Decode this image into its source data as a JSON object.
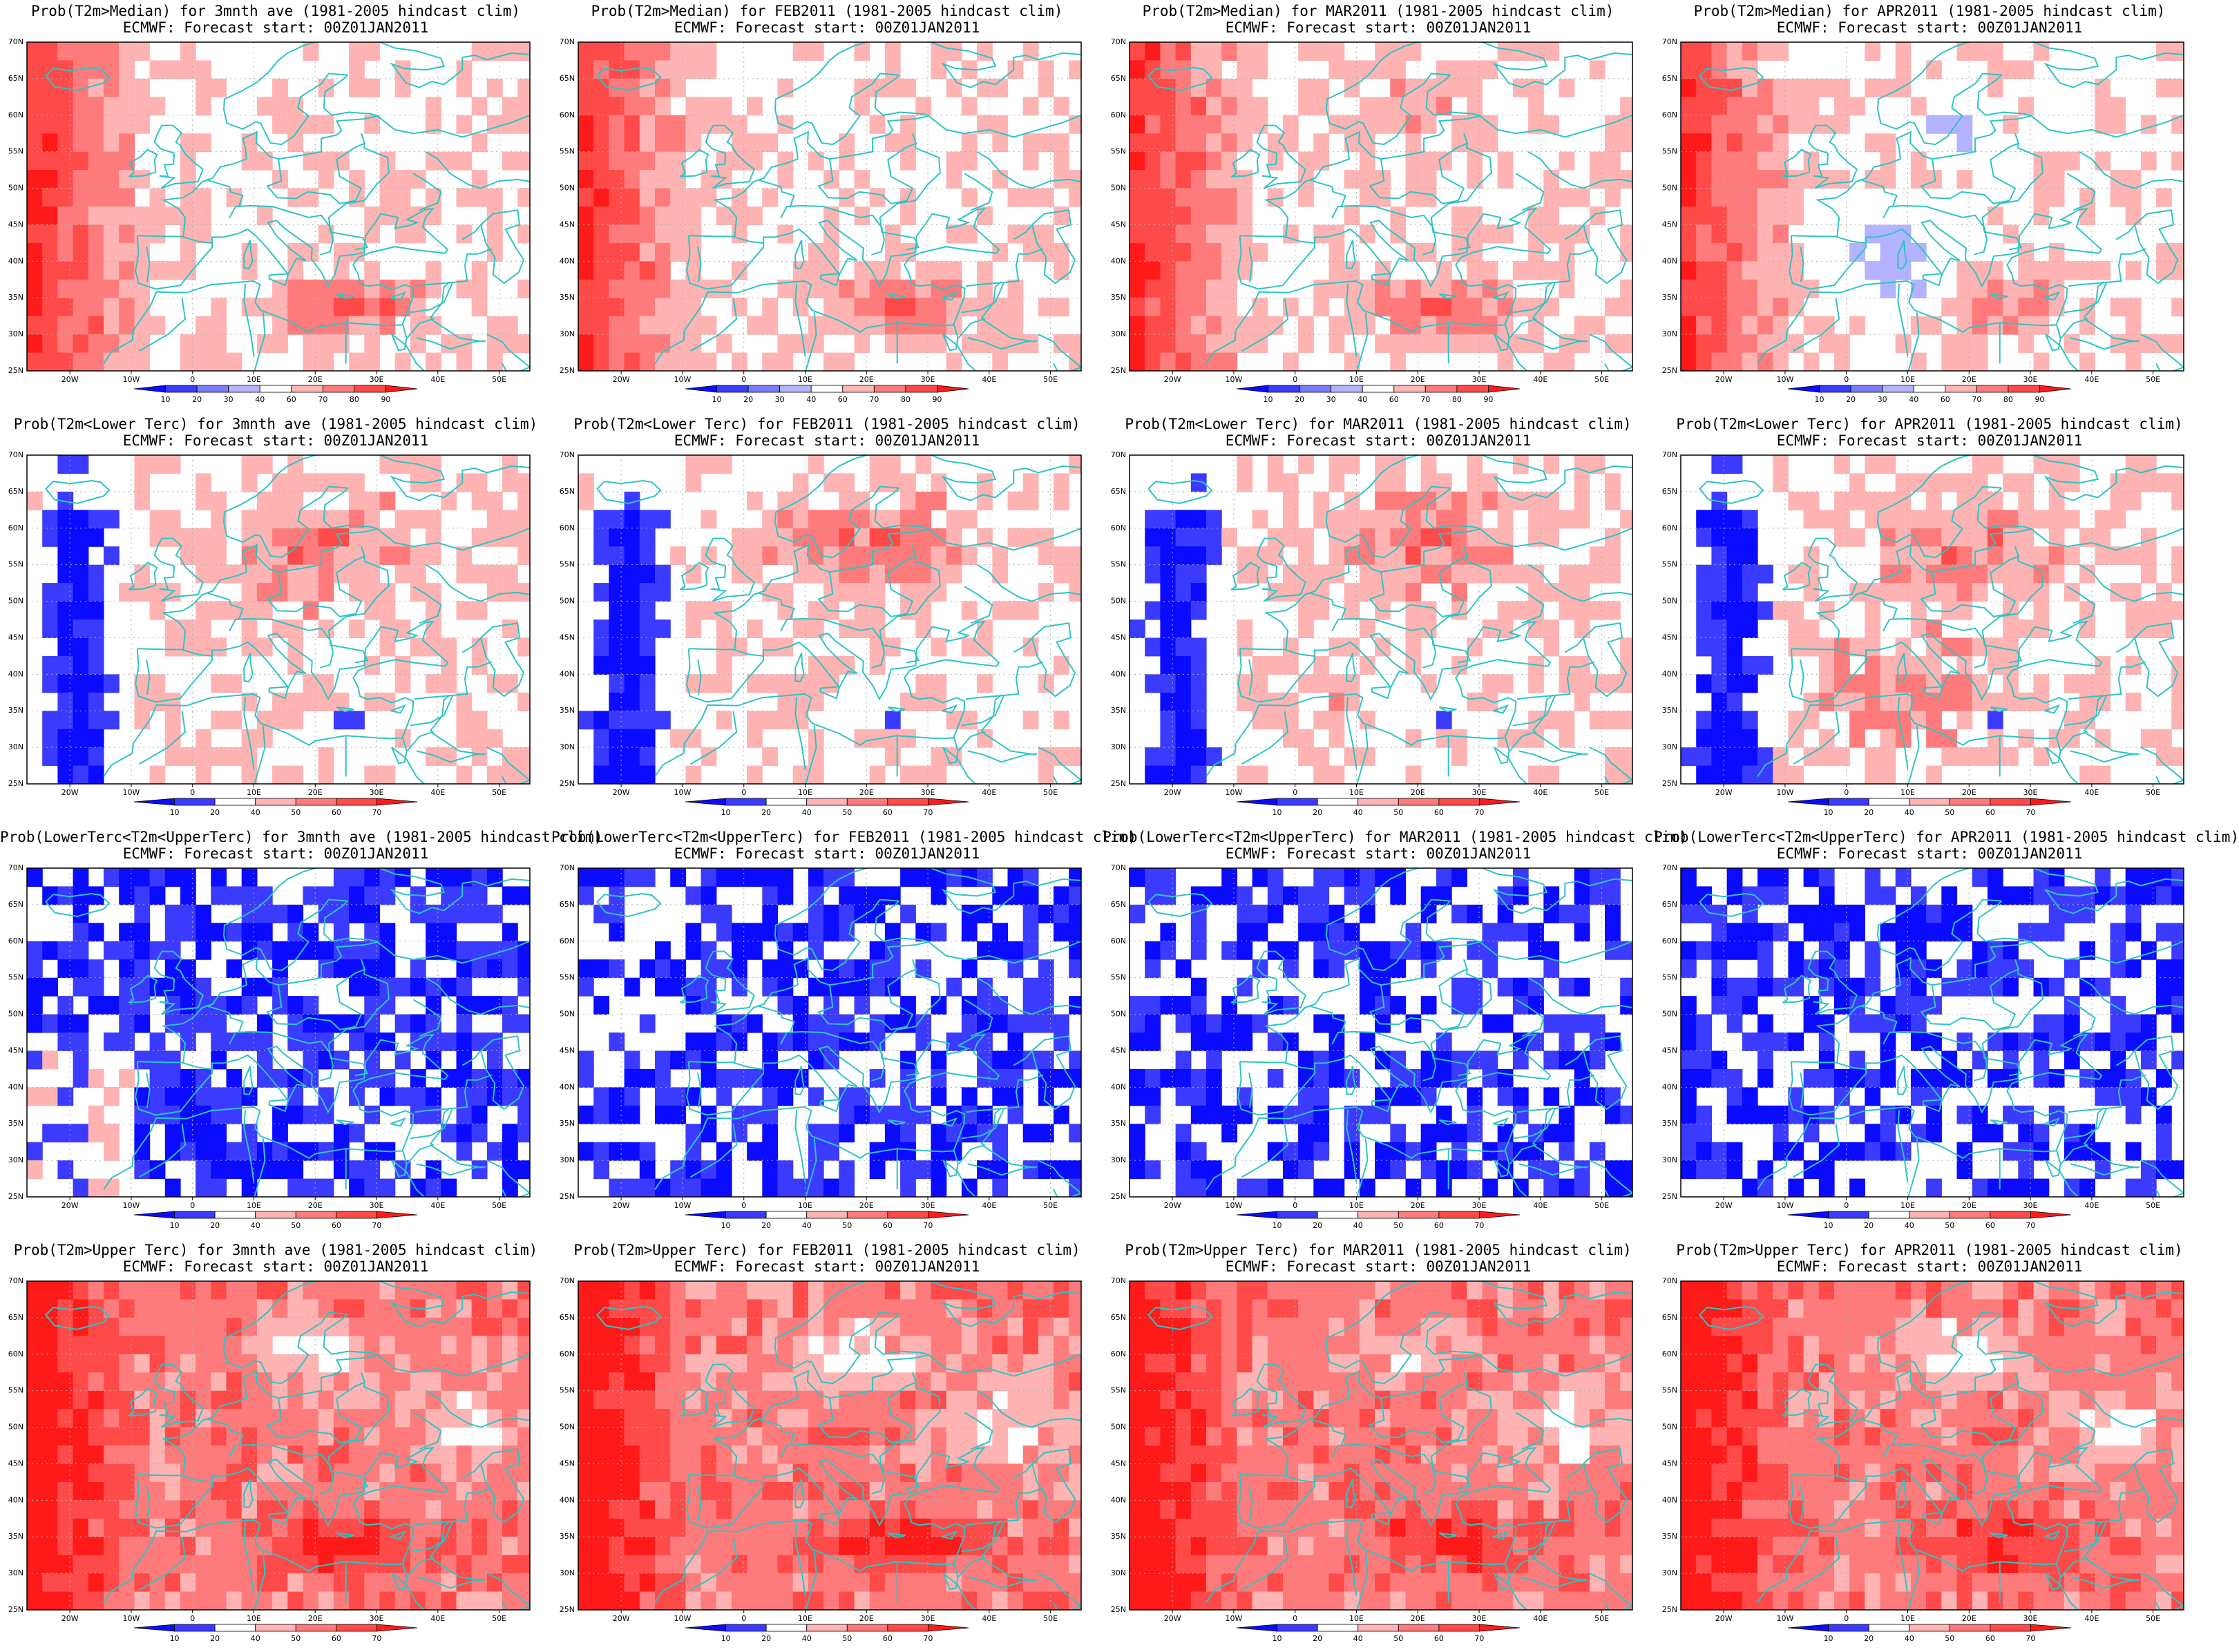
{
  "figure": {
    "rows": [
      {
        "id": "median",
        "legend": [
          "10",
          "20",
          "30",
          "40",
          "60",
          "70",
          "80",
          "90"
        ],
        "palette": [
          "#0b0bff",
          "#3b3bff",
          "#7b7bff",
          "#b3b3ff",
          "#ffffff",
          "#ffb3b3",
          "#ff7b7b",
          "#ff4a4a",
          "#ff1a1a"
        ],
        "panels": [
          {
            "title": "Prob(T2m>Median) for 3mnth ave (1981-2005 hindcast clim)",
            "subtitle": "ECMWF: Forecast start: 00Z01JAN2011"
          },
          {
            "title": "Prob(T2m>Median) for FEB2011 (1981-2005 hindcast clim)",
            "subtitle": "ECMWF: Forecast start: 00Z01JAN2011"
          },
          {
            "title": "Prob(T2m>Median) for MAR2011 (1981-2005 hindcast clim)",
            "subtitle": "ECMWF: Forecast start: 00Z01JAN2011"
          },
          {
            "title": "Prob(T2m>Median) for APR2011 (1981-2005 hindcast clim)",
            "subtitle": "ECMWF: Forecast start: 00Z01JAN2011"
          }
        ]
      },
      {
        "id": "lower",
        "legend": [
          "10",
          "20",
          "40",
          "50",
          "60",
          "70"
        ],
        "palette": [
          "#0b0bff",
          "#3b3bff",
          "#ffffff",
          "#ffb3b3",
          "#ff7b7b",
          "#ff4a4a",
          "#ff1a1a"
        ],
        "panels": [
          {
            "title": "Prob(T2m<Lower Terc) for 3mnth ave (1981-2005 hindcast clim)",
            "subtitle": "ECMWF: Forecast start: 00Z01JAN2011"
          },
          {
            "title": "Prob(T2m<Lower Terc) for FEB2011 (1981-2005 hindcast clim)",
            "subtitle": "ECMWF: Forecast start: 00Z01JAN2011"
          },
          {
            "title": "Prob(T2m<Lower Terc) for MAR2011 (1981-2005 hindcast clim)",
            "subtitle": "ECMWF: Forecast start: 00Z01JAN2011"
          },
          {
            "title": "Prob(T2m<Lower Terc) for APR2011 (1981-2005 hindcast clim)",
            "subtitle": "ECMWF: Forecast start: 00Z01JAN2011"
          }
        ]
      },
      {
        "id": "middle",
        "legend": [
          "10",
          "20",
          "40",
          "50",
          "60",
          "70"
        ],
        "palette": [
          "#0b0bff",
          "#3b3bff",
          "#ffffff",
          "#ffb3b3",
          "#ff7b7b",
          "#ff4a4a",
          "#ff1a1a"
        ],
        "panels": [
          {
            "title": "Prob(LowerTerc<T2m<UpperTerc) for 3mnth ave (1981-2005 hindcast clim)",
            "subtitle": "ECMWF: Forecast start: 00Z01JAN2011"
          },
          {
            "title": "Prob(LowerTerc<T2m<UpperTerc) for FEB2011 (1981-2005 hindcast clim)",
            "subtitle": "ECMWF: Forecast start: 00Z01JAN2011"
          },
          {
            "title": "Prob(LowerTerc<T2m<UpperTerc) for MAR2011 (1981-2005 hindcast clim)",
            "subtitle": "ECMWF: Forecast start: 00Z01JAN2011"
          },
          {
            "title": "Prob(LowerTerc<T2m<UpperTerc) for APR2011 (1981-2005 hindcast clim)",
            "subtitle": "ECMWF: Forecast start: 00Z01JAN2011"
          }
        ]
      },
      {
        "id": "upper",
        "legend": [
          "10",
          "20",
          "40",
          "50",
          "60",
          "70"
        ],
        "palette": [
          "#0b0bff",
          "#3b3bff",
          "#ffffff",
          "#ffb3b3",
          "#ff7b7b",
          "#ff4a4a",
          "#ff1a1a"
        ],
        "panels": [
          {
            "title": "Prob(T2m>Upper Terc) for 3mnth ave (1981-2005 hindcast clim)",
            "subtitle": "ECMWF: Forecast start: 00Z01JAN2011"
          },
          {
            "title": "Prob(T2m>Upper Terc) for FEB2011 (1981-2005 hindcast clim)",
            "subtitle": "ECMWF: Forecast start: 00Z01JAN2011"
          },
          {
            "title": "Prob(T2m>Upper Terc) for MAR2011 (1981-2005 hindcast clim)",
            "subtitle": "ECMWF: Forecast start: 00Z01JAN2011"
          },
          {
            "title": "Prob(T2m>Upper Terc) for APR2011 (1981-2005 hindcast clim)",
            "subtitle": "ECMWF: Forecast start: 00Z01JAN2011"
          }
        ]
      }
    ],
    "axes": {
      "lat_labels": [
        "70N",
        "65N",
        "60N",
        "55N",
        "50N",
        "45N",
        "40N",
        "35N",
        "30N",
        "25N"
      ],
      "lon_labels": [
        "20W",
        "10W",
        "0",
        "10E",
        "20E",
        "30E",
        "40E",
        "50E"
      ],
      "lat_range": [
        25,
        70
      ],
      "lon_range": [
        -27,
        55
      ]
    },
    "colors": {
      "coastline": "#2ec4c4",
      "gridline": "#b0b0b0"
    }
  }
}
